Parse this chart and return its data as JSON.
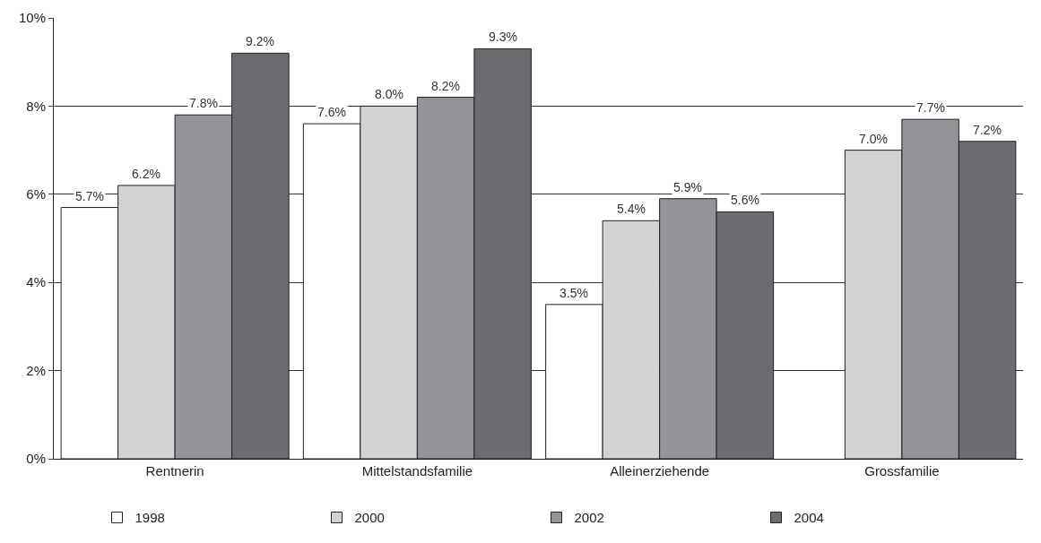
{
  "chart_data": {
    "type": "bar",
    "categories": [
      "Rentnerin",
      "Mittelstandsfamilie",
      "Alleinerziehende",
      "Grossfamilie"
    ],
    "series": [
      {
        "name": "1998",
        "color": "#ffffff",
        "values": [
          5.7,
          7.6,
          3.5,
          null
        ],
        "value_labels": [
          "5.7%",
          "7.6%",
          "3.5%",
          null
        ]
      },
      {
        "name": "2000",
        "color": "#d1d2d4",
        "values": [
          6.2,
          8.0,
          5.4,
          7.0
        ],
        "value_labels": [
          "6.2%",
          "8.0%",
          "5.4%",
          "7.0%"
        ]
      },
      {
        "name": "2002",
        "color": "#939498",
        "values": [
          7.8,
          8.2,
          5.9,
          7.7
        ],
        "value_labels": [
          "7.8%",
          "8.2%",
          "5.9%",
          "7.7%"
        ]
      },
      {
        "name": "2004",
        "color": "#6b6c70",
        "values": [
          9.2,
          9.3,
          5.6,
          7.2
        ],
        "value_labels": [
          "9.2%",
          "9.3%",
          "5.6%",
          "7.2%"
        ]
      }
    ],
    "ylim": [
      0,
      10
    ],
    "yticks": [
      {
        "value": 0,
        "label": "0%"
      },
      {
        "value": 2,
        "label": "2%"
      },
      {
        "value": 4,
        "label": "4%"
      },
      {
        "value": 6,
        "label": "6%"
      },
      {
        "value": 8,
        "label": "8%"
      },
      {
        "value": 10,
        "label": "10%"
      }
    ],
    "grid": "y",
    "legend": "bottom"
  }
}
